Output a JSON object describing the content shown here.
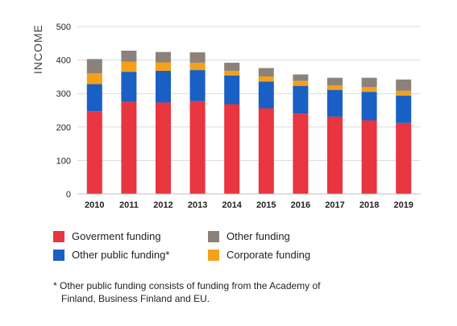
{
  "chart_data": {
    "type": "bar",
    "stacked": true,
    "ylabel": "INCOME",
    "ylim": [
      0,
      500
    ],
    "yticks": [
      0,
      100,
      200,
      300,
      400,
      500
    ],
    "grid": true,
    "categories": [
      "2010",
      "2011",
      "2012",
      "2013",
      "2014",
      "2015",
      "2016",
      "2017",
      "2018",
      "2019"
    ],
    "series": [
      {
        "name": "Goverment funding",
        "color": "#e8353f",
        "values": [
          247,
          275,
          273,
          277,
          268,
          256,
          240,
          231,
          220,
          212
        ]
      },
      {
        "name": "Other public funding*",
        "color": "#1a5fc4",
        "values": [
          81,
          90,
          95,
          93,
          86,
          80,
          83,
          80,
          85,
          82
        ]
      },
      {
        "name": "Corporate funding",
        "color": "#f5a01a",
        "values": [
          32,
          30,
          25,
          22,
          14,
          15,
          15,
          13,
          14,
          14
        ]
      },
      {
        "name": "Other funding",
        "color": "#8c8279",
        "values": [
          43,
          33,
          31,
          31,
          24,
          25,
          19,
          23,
          28,
          34
        ]
      }
    ]
  },
  "legend": {
    "government": "Goverment funding",
    "other": "Other funding",
    "other_public": "Other public funding*",
    "corporate": "Corporate funding"
  },
  "footnote": {
    "line1": "* Other public funding consists of funding from the Academy of",
    "line2": "Finland, Business Finland and EU."
  }
}
